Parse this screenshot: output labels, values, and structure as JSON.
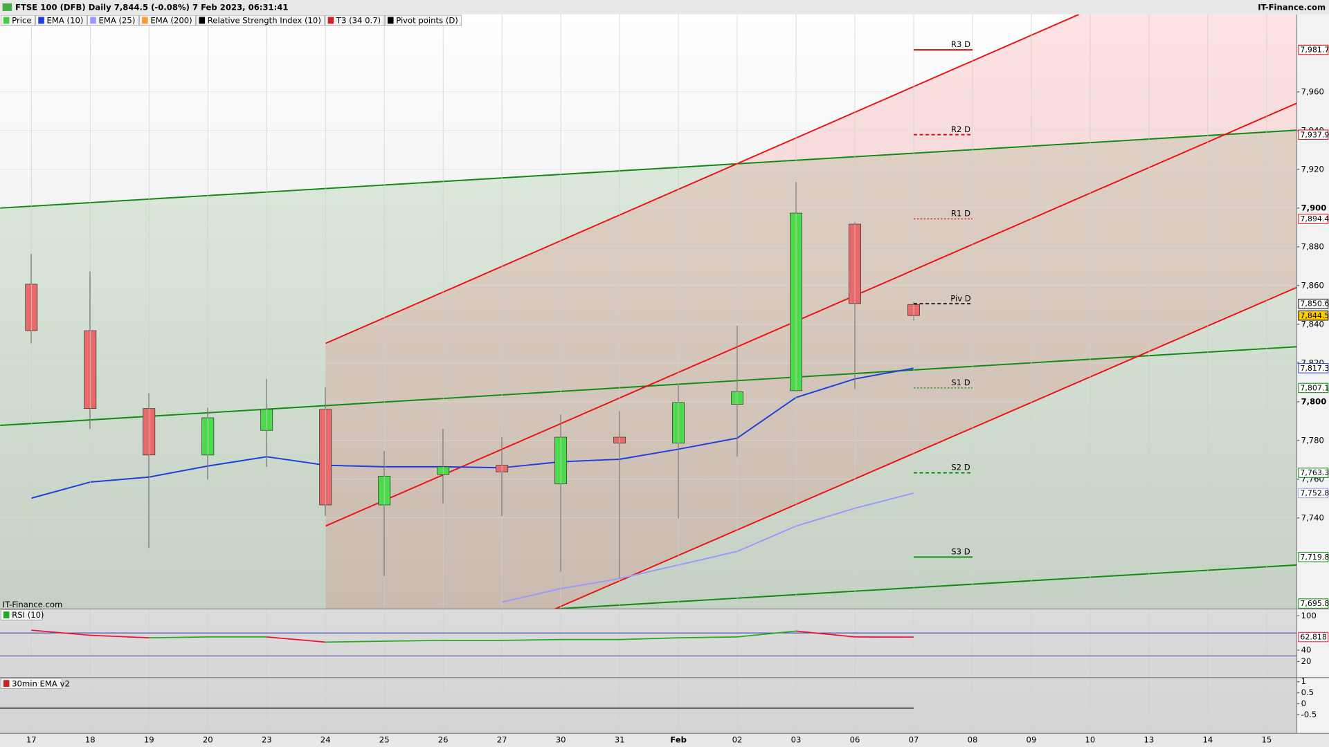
{
  "chart_data": {
    "type": "candlestick",
    "title": "FTSE 100 (DFB) Daily 7,844.5 (-0.08%) 7 Feb 2023, 06:31:41",
    "source": "IT-Finance.com",
    "watermark": "IT-Finance.com",
    "legend": [
      {
        "name": "Price",
        "color": "#44cc44"
      },
      {
        "name": "EMA (10)",
        "color": "#1f3fdd"
      },
      {
        "name": "EMA (25)",
        "color": "#9999ff"
      },
      {
        "name": "EMA (200)",
        "color": "#ff9933"
      },
      {
        "name": "Relative Strength Index (10)",
        "color": "#000000"
      },
      {
        "name": "T3 (34 0.7)",
        "color": "#cc2222"
      },
      {
        "name": "Pivot points (D)",
        "color": "#000000"
      }
    ],
    "categories": [
      "17",
      "18",
      "19",
      "20",
      "23",
      "24",
      "25",
      "26",
      "27",
      "30",
      "31",
      "Feb",
      "02",
      "03",
      "06",
      "07",
      "08",
      "09",
      "10",
      "13",
      "14",
      "15"
    ],
    "open": [
      7860.7,
      7836.7,
      7796.5,
      7772.5,
      7785.2,
      7796.1,
      7746.7,
      7762.4,
      7767.2,
      7757.6,
      7781.7,
      7778.6,
      7798.7,
      7805.7,
      7891.7,
      7850.2,
      null,
      null,
      null,
      null,
      null,
      null
    ],
    "high": [
      7876.4,
      7867.2,
      7804.4,
      7796.9,
      7811.8,
      7807.4,
      7774.7,
      7786.0,
      7781.7,
      7793.4,
      7795.2,
      7808.7,
      7839.3,
      7913.5,
      7892.6,
      7851.5,
      null,
      null,
      null,
      null,
      null,
      null
    ],
    "low": [
      7830.1,
      7786.0,
      7724.5,
      7759.8,
      7766.4,
      7741.0,
      7710.0,
      7747.6,
      7741.0,
      7712.2,
      7708.7,
      7739.7,
      7771.6,
      7805.2,
      7806.6,
      7841.9,
      null,
      null,
      null,
      null,
      null,
      null
    ],
    "close": [
      7836.7,
      7796.5,
      7772.5,
      7791.7,
      7796.1,
      7746.7,
      7761.6,
      7766.4,
      7763.8,
      7781.7,
      7778.6,
      7799.6,
      7805.2,
      7897.4,
      7850.7,
      7844.5,
      null,
      null,
      null,
      null,
      null,
      null
    ],
    "up_color": "#4ddb4d",
    "down_color": "#e86a6a",
    "series": [
      {
        "name": "EMA (10)",
        "color": "#1f3fdd",
        "values": [
          7750.2,
          7758.5,
          7761.1,
          7766.8,
          7771.6,
          7767.2,
          7766.4,
          7766.4,
          7765.9,
          7769.0,
          7770.3,
          7775.5,
          7781.2,
          7802.2,
          7811.8,
          7817.3,
          null,
          null,
          null,
          null,
          null,
          null
        ]
      },
      {
        "name": "EMA (25)",
        "color": "#9999ff",
        "values": [
          null,
          null,
          null,
          null,
          null,
          null,
          null,
          null,
          7696.5,
          7703.5,
          7708.7,
          7715.7,
          7722.7,
          7735.8,
          7745.0,
          7752.8,
          null,
          null,
          null,
          null,
          null,
          null
        ]
      }
    ],
    "ylim": [
      7693,
      8000
    ],
    "yticks": [
      {
        "value": 7960,
        "label": "7,960"
      },
      {
        "value": 7940,
        "label": "7,940"
      },
      {
        "value": 7920,
        "label": "7,920"
      },
      {
        "value": 7900,
        "label": "7,900"
      },
      {
        "value": 7880,
        "label": "7,880"
      },
      {
        "value": 7860,
        "label": "7,860"
      },
      {
        "value": 7840,
        "label": "7,840"
      },
      {
        "value": 7820,
        "label": "7,820"
      },
      {
        "value": 7800,
        "label": "7,800"
      },
      {
        "value": 7780,
        "label": "7,780"
      },
      {
        "value": 7760,
        "label": "7,760"
      },
      {
        "value": 7740,
        "label": "7,740"
      }
    ],
    "grid": true,
    "pivots": [
      {
        "name": "R3 D",
        "value": 7981.7,
        "color": "#dd0000",
        "style": "solid"
      },
      {
        "name": "R2 D",
        "value": 7937.9,
        "color": "#dd0000",
        "style": "dashed"
      },
      {
        "name": "R1 D",
        "value": 7894.4,
        "color": "#dd0000",
        "style": "dotted"
      },
      {
        "name": "Piv D",
        "value": 7850.6,
        "color": "#000000",
        "style": "dashed"
      },
      {
        "name": "S1 D",
        "value": 7807.1,
        "color": "#008800",
        "style": "dotted"
      },
      {
        "name": "S2 D",
        "value": 7763.3,
        "color": "#008800",
        "style": "dashed"
      },
      {
        "name": "S3 D",
        "value": 7719.8,
        "color": "#008800",
        "style": "solid"
      }
    ],
    "price_labels": [
      {
        "value": 7981.7,
        "label": "7,981.7",
        "color": "#dd0000",
        "fill": "#ffffff"
      },
      {
        "value": 7937.9,
        "label": "7,937.9",
        "color": "#dd0000",
        "fill": "#ffffff"
      },
      {
        "value": 7894.4,
        "label": "7,894.4",
        "color": "#dd0000",
        "fill": "#ffffff"
      },
      {
        "value": 7850.6,
        "label": "7,850.6",
        "color": "#000000",
        "fill": "#ffffff"
      },
      {
        "value": 7844.5,
        "label": "7,844.5",
        "color": "#000000",
        "fill": "#ffcc00"
      },
      {
        "value": 7817.3,
        "label": "7,817.3",
        "color": "#1f3fdd",
        "fill": "#ffffff"
      },
      {
        "value": 7807.1,
        "label": "7,807.1",
        "color": "#008800",
        "fill": "#ffffff"
      },
      {
        "value": 7763.3,
        "label": "7,763.3",
        "color": "#008800",
        "fill": "#ffffff"
      },
      {
        "value": 7752.8,
        "label": "7,752.8",
        "color": "#9999ff",
        "fill": "#ffffff"
      },
      {
        "value": 7719.8,
        "label": "7,719.8",
        "color": "#008800",
        "fill": "#ffffff"
      },
      {
        "value": 7695.8,
        "label": "7,695.8",
        "color": "#008800",
        "fill": "#ffffff"
      }
    ],
    "trendlines": [
      {
        "color": "#118811",
        "x": [
          -0.53,
          21.51
        ],
        "y": [
          7900,
          7940.2
        ]
      },
      {
        "color": "#118811",
        "x": [
          -0.53,
          21.51
        ],
        "y": [
          7787.8,
          7828.4
        ]
      },
      {
        "color": "#118811",
        "x": [
          8.9,
          21.51
        ],
        "y": [
          7693,
          7715.7
        ]
      },
      {
        "color": "#ee1111",
        "x": [
          5,
          17.81
        ],
        "y": [
          7830.1,
          8000
        ]
      },
      {
        "color": "#ee1111",
        "x": [
          5,
          21.51
        ],
        "y": [
          7735.8,
          7954.1
        ]
      },
      {
        "color": "#ee1111",
        "x": [
          8.9,
          21.51
        ],
        "y": [
          7693,
          7859
        ]
      }
    ],
    "rsi": {
      "title": "RSI (10)",
      "ylim": [
        -8,
        112
      ],
      "yticks": [
        100,
        40,
        20
      ],
      "levels": [
        70,
        30
      ],
      "level_color": "#3333aa",
      "up_color": "#22aa22",
      "down_color": "#ee1133",
      "values": [
        74.8,
        65.9,
        61.5,
        63,
        63,
        54,
        55.6,
        57,
        57,
        58.5,
        58.5,
        61.5,
        63,
        73.3,
        63,
        62.818,
        null,
        null,
        null,
        null,
        null,
        null
      ],
      "last_label": {
        "value": 62.818,
        "label": "62.818"
      }
    },
    "ema30": {
      "title": "30min EMA v2",
      "ylim": [
        -1.35,
        1.19
      ],
      "yticks": [
        1,
        0.5,
        0,
        -0.5
      ],
      "level": -0.2
    }
  }
}
